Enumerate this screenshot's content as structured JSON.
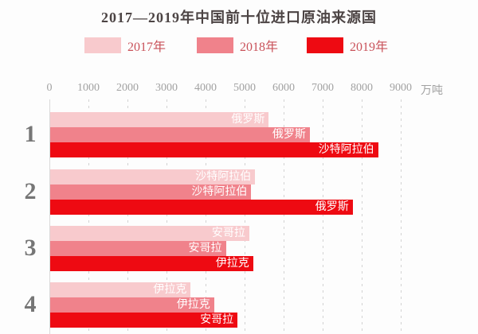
{
  "title": "2017—2019年中国前十位进口原油来源国",
  "legend": {
    "items": [
      {
        "label": "2017年",
        "color": "#f8cacd"
      },
      {
        "label": "2018年",
        "color": "#f0828b"
      },
      {
        "label": "2019年",
        "color": "#ee0a12"
      }
    ]
  },
  "axis": {
    "ticks": [
      "0",
      "1000",
      "2000",
      "3000",
      "4000",
      "5000",
      "6000",
      "7000",
      "8000",
      "9000"
    ],
    "unit": "万吨"
  },
  "chart_data": {
    "type": "bar",
    "orientation": "horizontal",
    "title": "2017—2019年中国前十位进口原油来源国",
    "xlabel": "万吨",
    "xlim": [
      0,
      9000
    ],
    "x_ticks": [
      0,
      1000,
      2000,
      3000,
      4000,
      5000,
      6000,
      7000,
      8000,
      9000
    ],
    "grid": "dashed-vertical",
    "legend_position": "top",
    "series_years": [
      "2017年",
      "2018年",
      "2019年"
    ],
    "colors": {
      "2017年": "#f8cacd",
      "2018年": "#f0828b",
      "2019年": "#ee0a12"
    },
    "groups": [
      {
        "rank": "1",
        "bars": [
          {
            "year": "2017年",
            "country": "俄罗斯",
            "value": 5600
          },
          {
            "year": "2018年",
            "country": "俄罗斯",
            "value": 6650
          },
          {
            "year": "2019年",
            "country": "沙特阿拉伯",
            "value": 8400
          }
        ]
      },
      {
        "rank": "2",
        "bars": [
          {
            "year": "2017年",
            "country": "沙特阿拉伯",
            "value": 5250
          },
          {
            "year": "2018年",
            "country": "沙特阿拉伯",
            "value": 5150
          },
          {
            "year": "2019年",
            "country": "俄罗斯",
            "value": 7750
          }
        ]
      },
      {
        "rank": "3",
        "bars": [
          {
            "year": "2017年",
            "country": "安哥拉",
            "value": 5100
          },
          {
            "year": "2018年",
            "country": "安哥拉",
            "value": 4500
          },
          {
            "year": "2019年",
            "country": "伊拉克",
            "value": 5200
          }
        ]
      },
      {
        "rank": "4",
        "bars": [
          {
            "year": "2017年",
            "country": "伊拉克",
            "value": 3600
          },
          {
            "year": "2018年",
            "country": "伊拉克",
            "value": 4200
          },
          {
            "year": "2019年",
            "country": "安哥拉",
            "value": 4800
          }
        ]
      }
    ]
  }
}
